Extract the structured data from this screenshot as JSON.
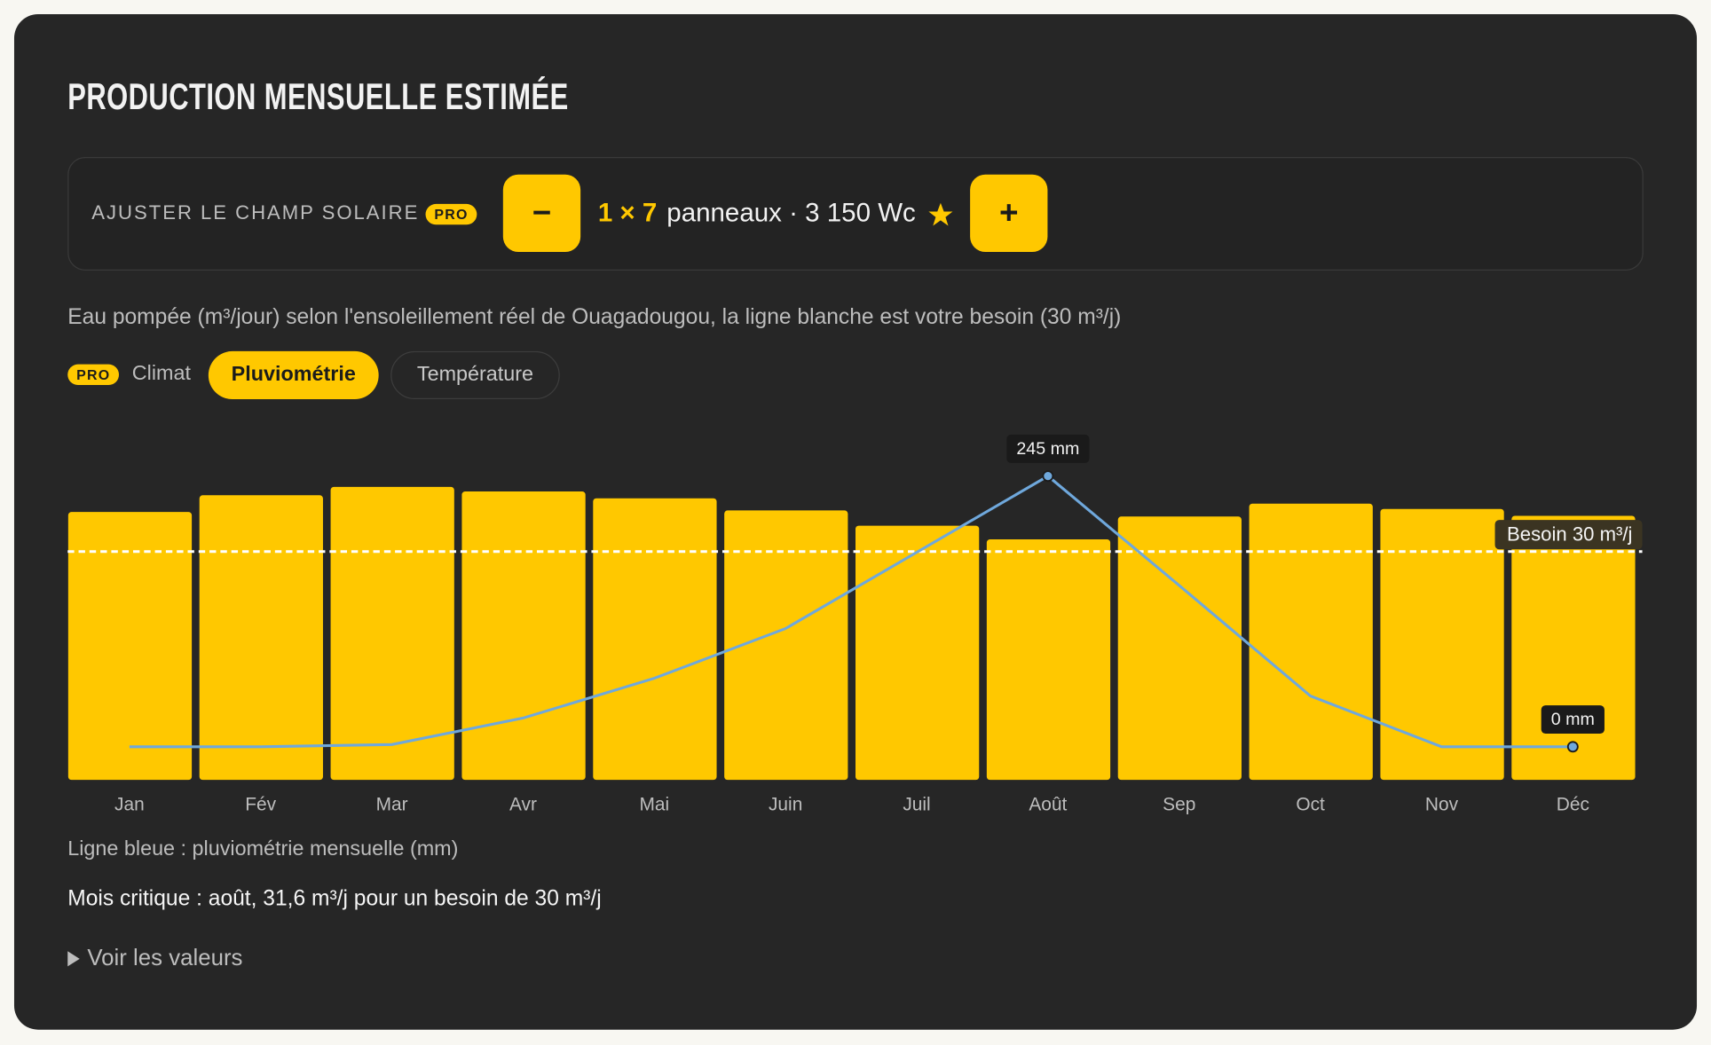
{
  "header": {
    "title": "PRODUCTION MENSUELLE ESTIMÉE"
  },
  "controls": {
    "label": "AJUSTER LE CHAMP SOLAIRE",
    "badge": "PRO",
    "minus": "−",
    "config": "1 × 7",
    "summary": "panneaux · 3 150 Wc",
    "plus": "+"
  },
  "description": "Eau pompée (m³/jour) selon l'ensoleillement réel de Ouagadougou, la ligne blanche est votre besoin (30 m³/j)",
  "tabs": {
    "badge": "PRO",
    "label": "Climat",
    "options": [
      "Pluviométrie",
      "Température"
    ],
    "active": 0
  },
  "chart_data": {
    "type": "bar",
    "categories": [
      "Jan",
      "Fév",
      "Mar",
      "Avr",
      "Mai",
      "Juin",
      "Juil",
      "Août",
      "Sep",
      "Oct",
      "Nov",
      "Déc"
    ],
    "values": [
      35.2,
      37.4,
      38.5,
      37.9,
      37.0,
      35.4,
      33.4,
      31.6,
      34.6,
      36.3,
      35.6,
      34.7
    ],
    "color": "#ffc800",
    "ylim": [
      0,
      45
    ],
    "grid": false,
    "reference": {
      "value": 30,
      "label": "Besoin 30 m³/j",
      "color": "#ffffff"
    },
    "y2lim": [
      -30,
      280
    ],
    "series": [
      {
        "type": "line",
        "axis": "y2",
        "color": "#6fa8dc",
        "values": [
          0,
          0,
          2,
          26,
          62,
          107,
          176,
          245,
          146,
          46,
          0,
          0
        ],
        "value_labels": [
          null,
          null,
          null,
          null,
          null,
          null,
          null,
          "245 mm",
          null,
          null,
          null,
          "0 mm"
        ]
      }
    ]
  },
  "legend_note": "Ligne bleue : pluviométrie mensuelle (mm)",
  "critical": "Mois critique : août, 31,6 m³/j pour un besoin de 30 m³/j",
  "details": "Voir les valeurs"
}
